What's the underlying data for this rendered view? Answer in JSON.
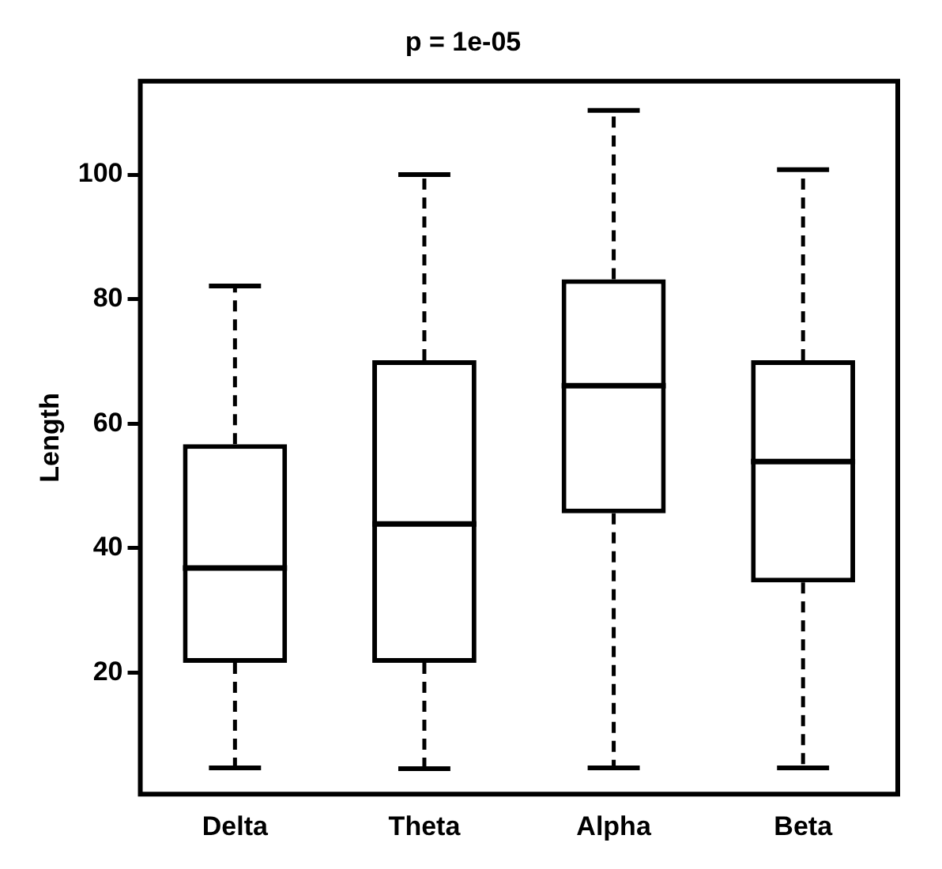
{
  "chart_data": {
    "type": "box",
    "title": "p = 1e-05",
    "ylabel": "Length",
    "categories": [
      "Delta",
      "Theta",
      "Alpha",
      "Beta"
    ],
    "boxes": [
      {
        "low": 4.7,
        "q1": 21.6,
        "median": 36.8,
        "q3": 56.7,
        "high": 82.1
      },
      {
        "low": 4.6,
        "q1": 21.6,
        "median": 43.9,
        "q3": 70.2,
        "high": 100
      },
      {
        "low": 4.7,
        "q1": 45.6,
        "median": 66.1,
        "q3": 83.2,
        "high": 110.3
      },
      {
        "low": 4.7,
        "q1": 34.5,
        "median": 53.9,
        "q3": 70.2,
        "high": 100.8
      }
    ],
    "ylim": [
      0.5,
      115
    ],
    "yticks": [
      20,
      40,
      60,
      80,
      100
    ]
  }
}
